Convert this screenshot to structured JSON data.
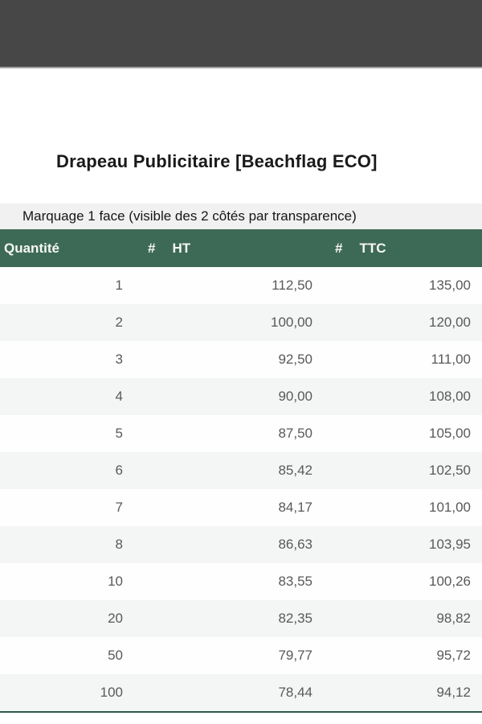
{
  "top_bar": {
    "color": "#474747"
  },
  "product": {
    "title": "Drapeau Publicitaire [Beachflag ECO]"
  },
  "pricing": {
    "subtitle": "Marquage 1 face (visible des 2 côtés par transparence)",
    "accent_color": "#3d6a56",
    "bottom_border_color": "#2e5a4b",
    "header": {
      "quantity": "Quantité",
      "hash_ht": "#",
      "ht": "HT",
      "hash_ttc": "#",
      "ttc": "TTC"
    },
    "rows": [
      {
        "quantity": "1",
        "ht": "112,50",
        "ttc": "135,00"
      },
      {
        "quantity": "2",
        "ht": "100,00",
        "ttc": "120,00"
      },
      {
        "quantity": "3",
        "ht": "92,50",
        "ttc": "111,00"
      },
      {
        "quantity": "4",
        "ht": "90,00",
        "ttc": "108,00"
      },
      {
        "quantity": "5",
        "ht": "87,50",
        "ttc": "105,00"
      },
      {
        "quantity": "6",
        "ht": "85,42",
        "ttc": "102,50"
      },
      {
        "quantity": "7",
        "ht": "84,17",
        "ttc": "101,00"
      },
      {
        "quantity": "8",
        "ht": "86,63",
        "ttc": "103,95"
      },
      {
        "quantity": "10",
        "ht": "83,55",
        "ttc": "100,26"
      },
      {
        "quantity": "20",
        "ht": "82,35",
        "ttc": "98,82"
      },
      {
        "quantity": "50",
        "ht": "79,77",
        "ttc": "95,72"
      },
      {
        "quantity": "100",
        "ht": "78,44",
        "ttc": "94,12"
      }
    ]
  }
}
